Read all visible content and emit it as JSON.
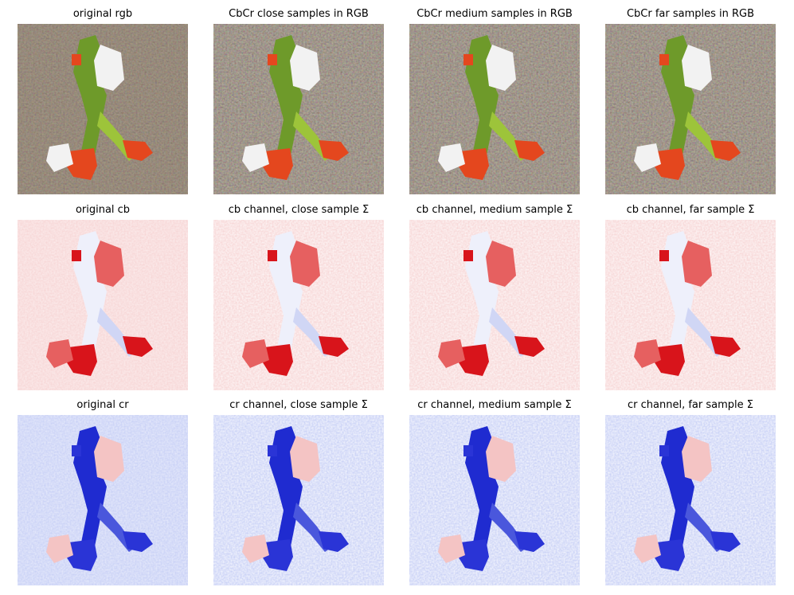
{
  "panels": [
    {
      "title": "original rgb"
    },
    {
      "title": "CbCr close samples in RGB"
    },
    {
      "title": "CbCr medium samples in RGB"
    },
    {
      "title": "CbCr far samples in RGB"
    },
    {
      "title": "original cb"
    },
    {
      "title": "cb channel, close sample Σ"
    },
    {
      "title": "cb channel, medium sample Σ"
    },
    {
      "title": "cb channel, far sample Σ"
    },
    {
      "title": "original cr"
    },
    {
      "title": "cr channel, close sample Σ"
    },
    {
      "title": "cr channel, medium sample Σ"
    },
    {
      "title": "cr channel, far sample Σ"
    }
  ]
}
